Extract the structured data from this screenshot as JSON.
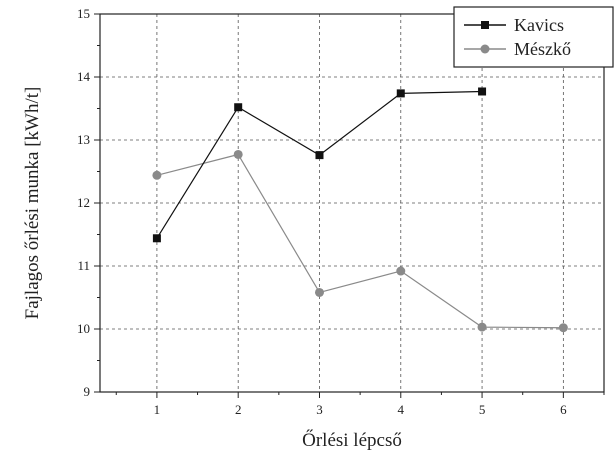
{
  "chart_data": {
    "type": "line",
    "title": "",
    "xlabel": "Őrlési lépcső",
    "ylabel": "Fajlagos őrlési munka [kWh/t]",
    "xlim": [
      0.3,
      6.5
    ],
    "ylim": [
      9,
      15
    ],
    "x_ticks": [
      1,
      2,
      3,
      4,
      5,
      6
    ],
    "y_ticks": [
      9,
      10,
      11,
      12,
      13,
      14,
      15
    ],
    "grid": true,
    "legend_position": "top-right",
    "series": [
      {
        "name": "Kavics",
        "marker": "square",
        "color": "#111111",
        "x": [
          1,
          2,
          3,
          4,
          5
        ],
        "y": [
          11.44,
          13.52,
          12.76,
          13.74,
          13.77
        ]
      },
      {
        "name": "Mészkő",
        "marker": "circle",
        "color": "#8a8a8a",
        "x": [
          1,
          2,
          3,
          4,
          5,
          6
        ],
        "y": [
          12.44,
          12.77,
          10.58,
          10.92,
          10.03,
          10.02
        ]
      }
    ]
  }
}
